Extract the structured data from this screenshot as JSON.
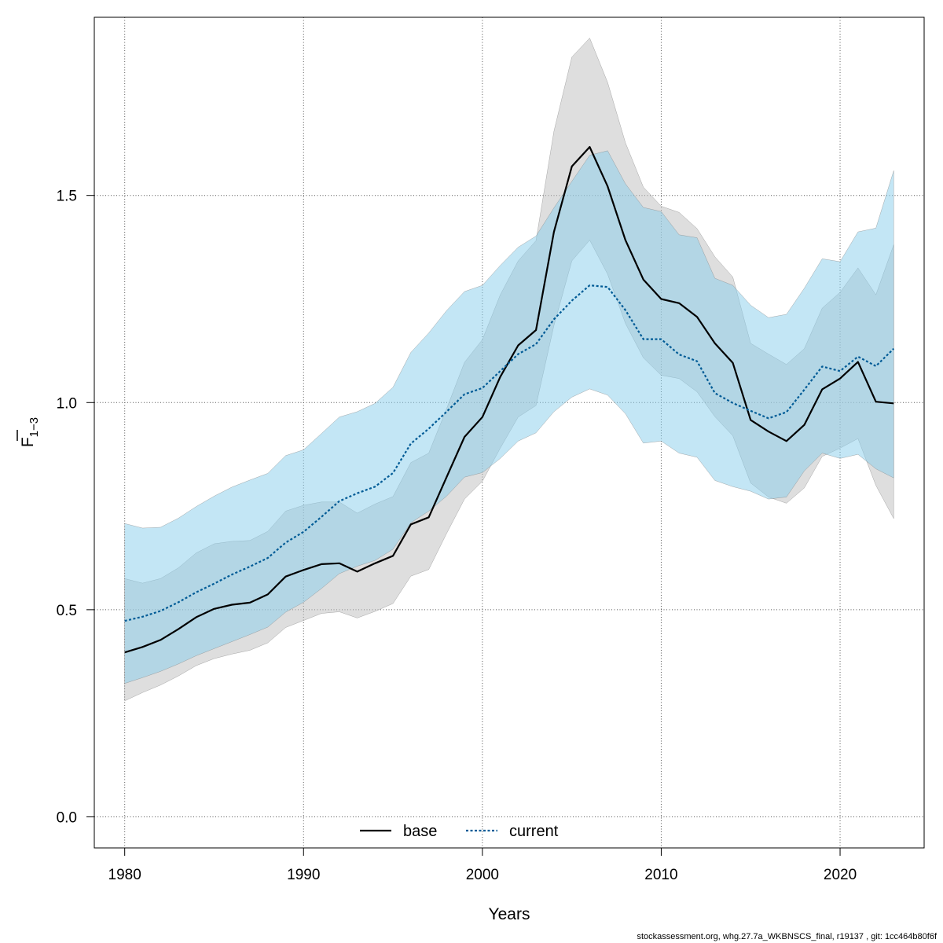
{
  "chart_data": {
    "type": "line",
    "xlabel": "Years",
    "ylabel": "F",
    "ylabel_subscript": "1−3",
    "xlim": [
      1978.3,
      2024.7
    ],
    "ylim": [
      -0.075,
      1.93
    ],
    "x_ticks": [
      "1980",
      "1990",
      "2000",
      "2010",
      "2020"
    ],
    "y_ticks": [
      "0.0",
      "0.5",
      "1.0",
      "1.5"
    ],
    "grid": true,
    "legend_position": "bottom-center",
    "x": [
      1980,
      1981,
      1982,
      1983,
      1984,
      1985,
      1986,
      1987,
      1988,
      1989,
      1990,
      1991,
      1992,
      1993,
      1994,
      1995,
      1996,
      1997,
      1998,
      1999,
      2000,
      2001,
      2002,
      2003,
      2004,
      2005,
      2006,
      2007,
      2008,
      2009,
      2010,
      2011,
      2012,
      2013,
      2014,
      2015,
      2016,
      2017,
      2018,
      2019,
      2020,
      2021,
      2022,
      2023
    ],
    "series": [
      {
        "name": "base",
        "color": "#000000",
        "style": "solid",
        "band_color": "#bebebe",
        "values": [
          0.397,
          0.41,
          0.427,
          0.453,
          0.482,
          0.502,
          0.512,
          0.517,
          0.537,
          0.58,
          0.596,
          0.61,
          0.612,
          0.592,
          0.612,
          0.63,
          0.706,
          0.723,
          0.82,
          0.917,
          0.965,
          1.062,
          1.138,
          1.175,
          1.412,
          1.57,
          1.617,
          1.522,
          1.392,
          1.297,
          1.25,
          1.24,
          1.207,
          1.143,
          1.096,
          0.958,
          0.93,
          0.907,
          0.946,
          1.032,
          1.058,
          1.098,
          1.002,
          0.998
        ],
        "lower": [
          0.28,
          0.3,
          0.318,
          0.34,
          0.365,
          0.382,
          0.393,
          0.402,
          0.42,
          0.457,
          0.474,
          0.491,
          0.495,
          0.48,
          0.496,
          0.515,
          0.581,
          0.597,
          0.684,
          0.767,
          0.81,
          0.89,
          0.965,
          0.993,
          1.186,
          1.342,
          1.392,
          1.31,
          1.191,
          1.108,
          1.066,
          1.058,
          1.026,
          0.966,
          0.92,
          0.806,
          0.772,
          0.757,
          0.794,
          0.87,
          0.89,
          0.913,
          0.8,
          0.72
        ],
        "upper": [
          0.575,
          0.564,
          0.575,
          0.601,
          0.637,
          0.659,
          0.665,
          0.667,
          0.689,
          0.738,
          0.752,
          0.76,
          0.76,
          0.733,
          0.755,
          0.773,
          0.855,
          0.878,
          0.985,
          1.097,
          1.152,
          1.26,
          1.342,
          1.391,
          1.655,
          1.834,
          1.88,
          1.773,
          1.627,
          1.52,
          1.474,
          1.459,
          1.42,
          1.352,
          1.303,
          1.143,
          1.117,
          1.092,
          1.13,
          1.228,
          1.266,
          1.325,
          1.26,
          1.381
        ]
      },
      {
        "name": "current",
        "color": "#005b96",
        "style": "dotted",
        "band_color": "#87ceeb",
        "values": [
          0.473,
          0.483,
          0.497,
          0.518,
          0.542,
          0.563,
          0.585,
          0.604,
          0.625,
          0.662,
          0.688,
          0.724,
          0.762,
          0.781,
          0.797,
          0.83,
          0.901,
          0.937,
          0.978,
          1.02,
          1.035,
          1.076,
          1.117,
          1.141,
          1.201,
          1.246,
          1.283,
          1.279,
          1.223,
          1.153,
          1.153,
          1.116,
          1.1,
          1.023,
          0.999,
          0.98,
          0.962,
          0.977,
          1.031,
          1.087,
          1.076,
          1.111,
          1.088,
          1.13
        ],
        "lower": [
          0.322,
          0.336,
          0.351,
          0.369,
          0.389,
          0.406,
          0.423,
          0.44,
          0.458,
          0.494,
          0.518,
          0.551,
          0.587,
          0.605,
          0.619,
          0.646,
          0.71,
          0.738,
          0.774,
          0.82,
          0.831,
          0.865,
          0.907,
          0.927,
          0.978,
          1.013,
          1.033,
          1.018,
          0.973,
          0.902,
          0.907,
          0.878,
          0.868,
          0.812,
          0.797,
          0.786,
          0.767,
          0.772,
          0.835,
          0.878,
          0.865,
          0.875,
          0.84,
          0.818
        ],
        "upper": [
          0.708,
          0.697,
          0.699,
          0.721,
          0.749,
          0.774,
          0.796,
          0.813,
          0.829,
          0.872,
          0.886,
          0.925,
          0.965,
          0.978,
          0.998,
          1.037,
          1.121,
          1.168,
          1.222,
          1.268,
          1.283,
          1.331,
          1.375,
          1.402,
          1.47,
          1.534,
          1.597,
          1.608,
          1.528,
          1.471,
          1.461,
          1.405,
          1.398,
          1.3,
          1.283,
          1.235,
          1.205,
          1.213,
          1.276,
          1.347,
          1.34,
          1.412,
          1.421,
          1.56
        ]
      }
    ]
  },
  "footer": "stockassessment.org, whg.27.7a_WKBNSCS_final, r19137 , git: 1cc464b80f6f"
}
